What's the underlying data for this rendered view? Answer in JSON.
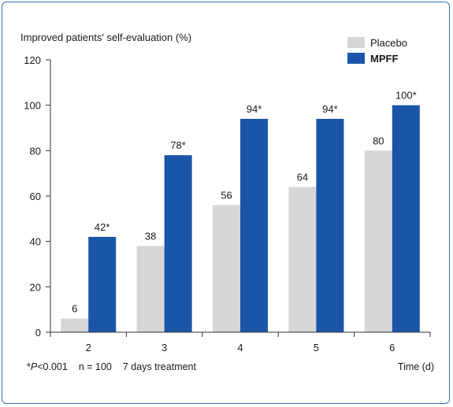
{
  "chart_data": {
    "type": "bar",
    "title": "",
    "ylabel": "Improved patients' self-evaluation (%)",
    "xlabel": "Time (d)",
    "ylim": [
      0,
      120
    ],
    "yticks": [
      0,
      20,
      40,
      60,
      80,
      100,
      120
    ],
    "categories": [
      "2",
      "3",
      "4",
      "5",
      "6"
    ],
    "series": [
      {
        "name": "Placebo",
        "color": "#d6d6d6",
        "values": [
          6,
          38,
          56,
          64,
          80
        ],
        "labels": [
          "6",
          "38",
          "56",
          "64",
          "80"
        ]
      },
      {
        "name": "MPFF",
        "color": "#1a56a8",
        "values": [
          42,
          78,
          94,
          94,
          100
        ],
        "labels": [
          "42*",
          "78*",
          "94*",
          "94*",
          "100*"
        ]
      }
    ],
    "legend_position": "top-right",
    "grid": false
  },
  "footnote": {
    "significance_star": "*",
    "significance_p": "P",
    "significance_rest": "<0.001",
    "n": "n = 100",
    "duration": "7 days treatment"
  }
}
